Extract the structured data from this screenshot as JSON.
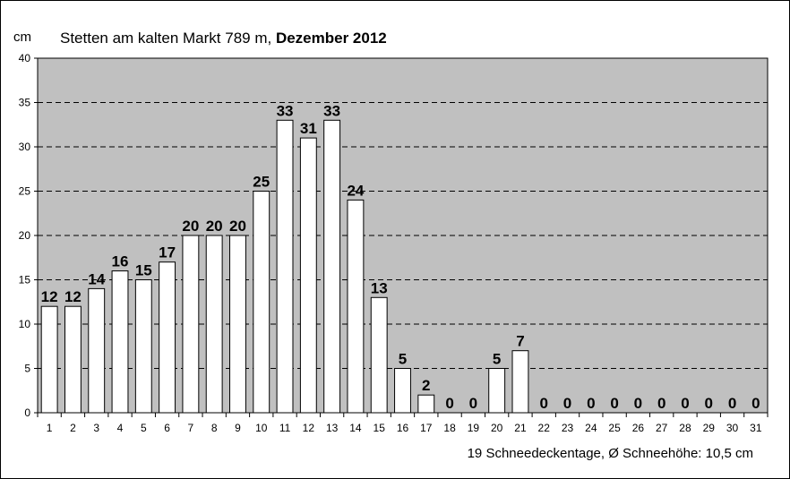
{
  "header": {
    "unit": "cm",
    "title_plain": "Stetten am kalten Markt 789 m, ",
    "title_bold": "Dezember 2012"
  },
  "footer": {
    "summary": "19 Schneedeckentage, Ø Schneehöhe:  10,5 cm"
  },
  "chart_data": {
    "type": "bar",
    "title": "Stetten am kalten Markt 789 m, Dezember 2012",
    "ylabel": "cm",
    "xlabel": "",
    "ylim": [
      0,
      40
    ],
    "yticks": [
      0,
      5,
      10,
      15,
      20,
      25,
      30,
      35,
      40
    ],
    "grid": true,
    "categories": [
      "1",
      "2",
      "3",
      "4",
      "5",
      "6",
      "7",
      "8",
      "9",
      "10",
      "11",
      "12",
      "13",
      "14",
      "15",
      "16",
      "17",
      "18",
      "19",
      "20",
      "21",
      "22",
      "23",
      "24",
      "25",
      "26",
      "27",
      "28",
      "29",
      "30",
      "31"
    ],
    "values": [
      12,
      12,
      14,
      16,
      15,
      17,
      20,
      20,
      20,
      25,
      33,
      31,
      33,
      24,
      13,
      5,
      2,
      0,
      0,
      5,
      7,
      0,
      0,
      0,
      0,
      0,
      0,
      0,
      0,
      0,
      0
    ],
    "colors": {
      "plot_bg": "#c0c0c0",
      "bar_fill": "#ffffff",
      "bar_stroke": "#000000"
    }
  }
}
